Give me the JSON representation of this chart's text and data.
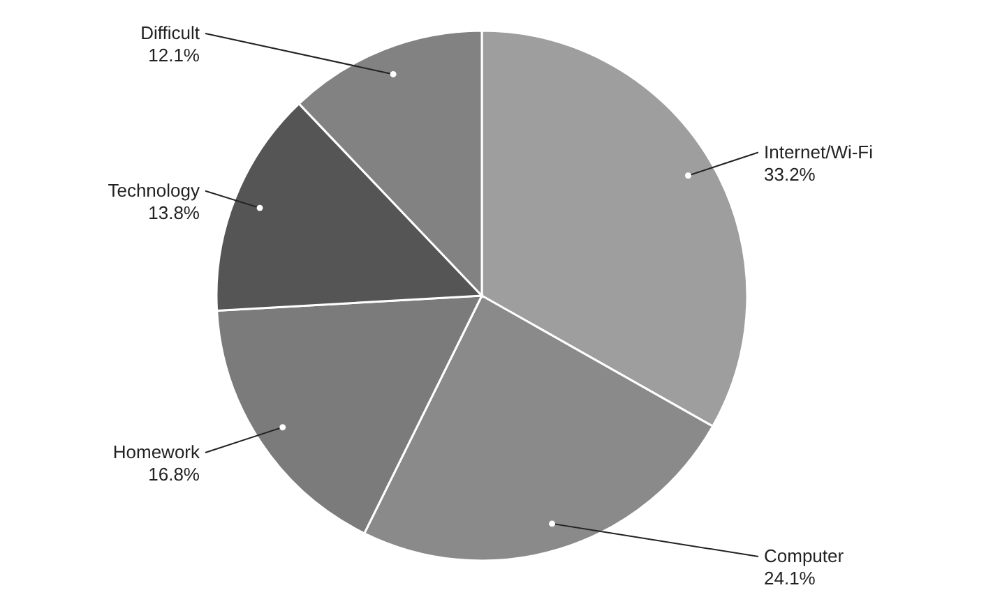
{
  "chart_data": {
    "type": "pie",
    "categories": [
      "Internet/Wi-Fi",
      "Computer",
      "Homework",
      "Technology",
      "Difficult"
    ],
    "values": [
      33.2,
      24.1,
      16.8,
      13.8,
      12.1
    ],
    "value_labels": [
      "33.2%",
      "24.1%",
      "16.8%",
      "13.8%",
      "12.1%"
    ],
    "colors": [
      "#9e9e9e",
      "#8a8a8a",
      "#7b7b7b",
      "#555555",
      "#828282"
    ]
  }
}
